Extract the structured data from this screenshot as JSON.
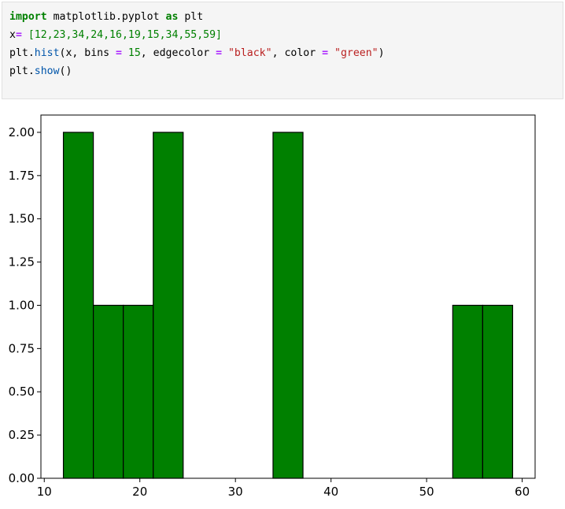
{
  "code_cell": {
    "lines": [
      [
        {
          "t": "import",
          "c": "kw"
        },
        {
          "t": " matplotlib.pyplot ",
          "c": "plain"
        },
        {
          "t": "as",
          "c": "kw"
        },
        {
          "t": " plt",
          "c": "plain"
        }
      ],
      [
        {
          "t": "x",
          "c": "plain"
        },
        {
          "t": "=",
          "c": "op"
        },
        {
          "t": " [12,23,34,24,16,19,15,34,55,59]",
          "c": "num"
        }
      ],
      [
        {
          "t": "plt.",
          "c": "plain"
        },
        {
          "t": "hist",
          "c": "fn"
        },
        {
          "t": "(x, bins ",
          "c": "plain"
        },
        {
          "t": "=",
          "c": "op"
        },
        {
          "t": " ",
          "c": "plain"
        },
        {
          "t": "15",
          "c": "num"
        },
        {
          "t": ", edgecolor ",
          "c": "plain"
        },
        {
          "t": "=",
          "c": "op"
        },
        {
          "t": " ",
          "c": "plain"
        },
        {
          "t": "\"black\"",
          "c": "str"
        },
        {
          "t": ", color ",
          "c": "plain"
        },
        {
          "t": "=",
          "c": "op"
        },
        {
          "t": " ",
          "c": "plain"
        },
        {
          "t": "\"green\"",
          "c": "str"
        },
        {
          "t": ")",
          "c": "plain"
        }
      ],
      [
        {
          "t": "plt.",
          "c": "plain"
        },
        {
          "t": "show",
          "c": "fn"
        },
        {
          "t": "()",
          "c": "plain"
        }
      ]
    ]
  },
  "chart_data": {
    "type": "bar",
    "bar_color": "#008000",
    "edge_color": "#000000",
    "bins": [
      {
        "x0": 12.0,
        "x1": 15.133,
        "count": 2
      },
      {
        "x0": 15.133,
        "x1": 18.267,
        "count": 1
      },
      {
        "x0": 18.267,
        "x1": 21.4,
        "count": 1
      },
      {
        "x0": 21.4,
        "x1": 24.533,
        "count": 2
      },
      {
        "x0": 24.533,
        "x1": 27.667,
        "count": 0
      },
      {
        "x0": 27.667,
        "x1": 30.8,
        "count": 0
      },
      {
        "x0": 30.8,
        "x1": 33.933,
        "count": 0
      },
      {
        "x0": 33.933,
        "x1": 37.067,
        "count": 2
      },
      {
        "x0": 37.067,
        "x1": 40.2,
        "count": 0
      },
      {
        "x0": 40.2,
        "x1": 43.333,
        "count": 0
      },
      {
        "x0": 43.333,
        "x1": 46.467,
        "count": 0
      },
      {
        "x0": 46.467,
        "x1": 49.6,
        "count": 0
      },
      {
        "x0": 49.6,
        "x1": 52.733,
        "count": 0
      },
      {
        "x0": 52.733,
        "x1": 55.867,
        "count": 1
      },
      {
        "x0": 55.867,
        "x1": 59.0,
        "count": 1
      }
    ],
    "xlim": [
      9.65,
      61.35
    ],
    "ylim": [
      0,
      2.1
    ],
    "xticks": [
      10,
      20,
      30,
      40,
      50,
      60
    ],
    "xtick_labels": [
      "10",
      "20",
      "30",
      "40",
      "50",
      "60"
    ],
    "yticks": [
      0,
      0.25,
      0.5,
      0.75,
      1.0,
      1.25,
      1.5,
      1.75,
      2.0
    ],
    "ytick_labels": [
      "0.00",
      "0.25",
      "0.50",
      "0.75",
      "1.00",
      "1.25",
      "1.50",
      "1.75",
      "2.00"
    ],
    "grid": false
  }
}
